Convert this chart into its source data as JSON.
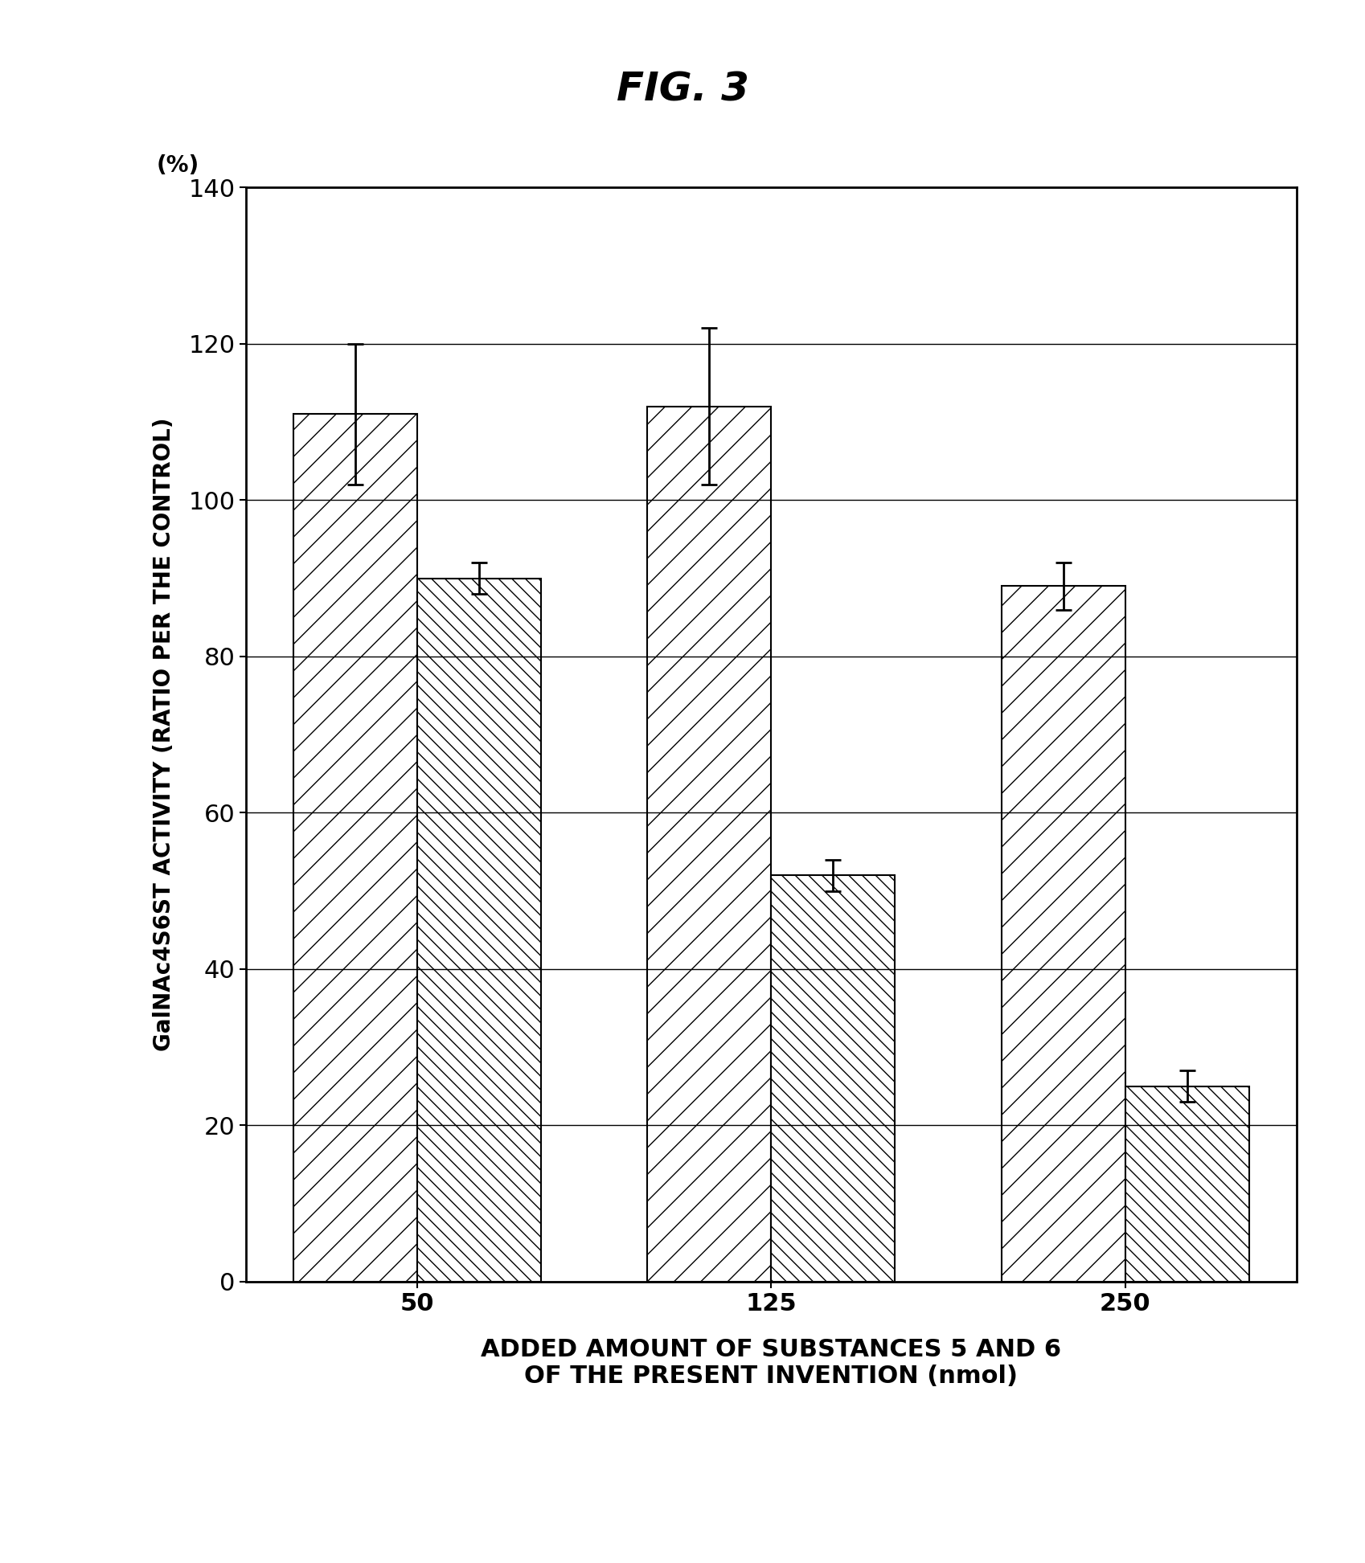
{
  "title": "FIG. 3",
  "ylabel": "GalNAc4S6ST ACTIVITY (RATIO PER THE CONTROL)",
  "ylabel_unit": "(%)",
  "xlabel_line1": "ADDED AMOUNT OF SUBSTANCES 5 AND 6",
  "xlabel_line2": "OF THE PRESENT INVENTION (nmol)",
  "categories": [
    "50",
    "125",
    "250"
  ],
  "bar1_values": [
    111,
    112,
    89
  ],
  "bar2_values": [
    90,
    52,
    25
  ],
  "bar1_errors": [
    9,
    10,
    3
  ],
  "bar2_errors": [
    2,
    2,
    2
  ],
  "ylim": [
    0,
    140
  ],
  "yticks": [
    0,
    20,
    40,
    60,
    80,
    100,
    120,
    140
  ],
  "bar_width": 0.35,
  "bar1_hatch": "/",
  "bar2_hatch": "\\\\",
  "bar_facecolor": "#ffffff",
  "bar_edgecolor": "#000000",
  "background_color": "#ffffff",
  "title_fontsize": 36,
  "ylabel_fontsize": 20,
  "tick_fontsize": 22,
  "xlabel_fontsize": 22,
  "unit_fontsize": 20,
  "fig_width": 16.98,
  "fig_height": 19.45,
  "dpi": 100
}
